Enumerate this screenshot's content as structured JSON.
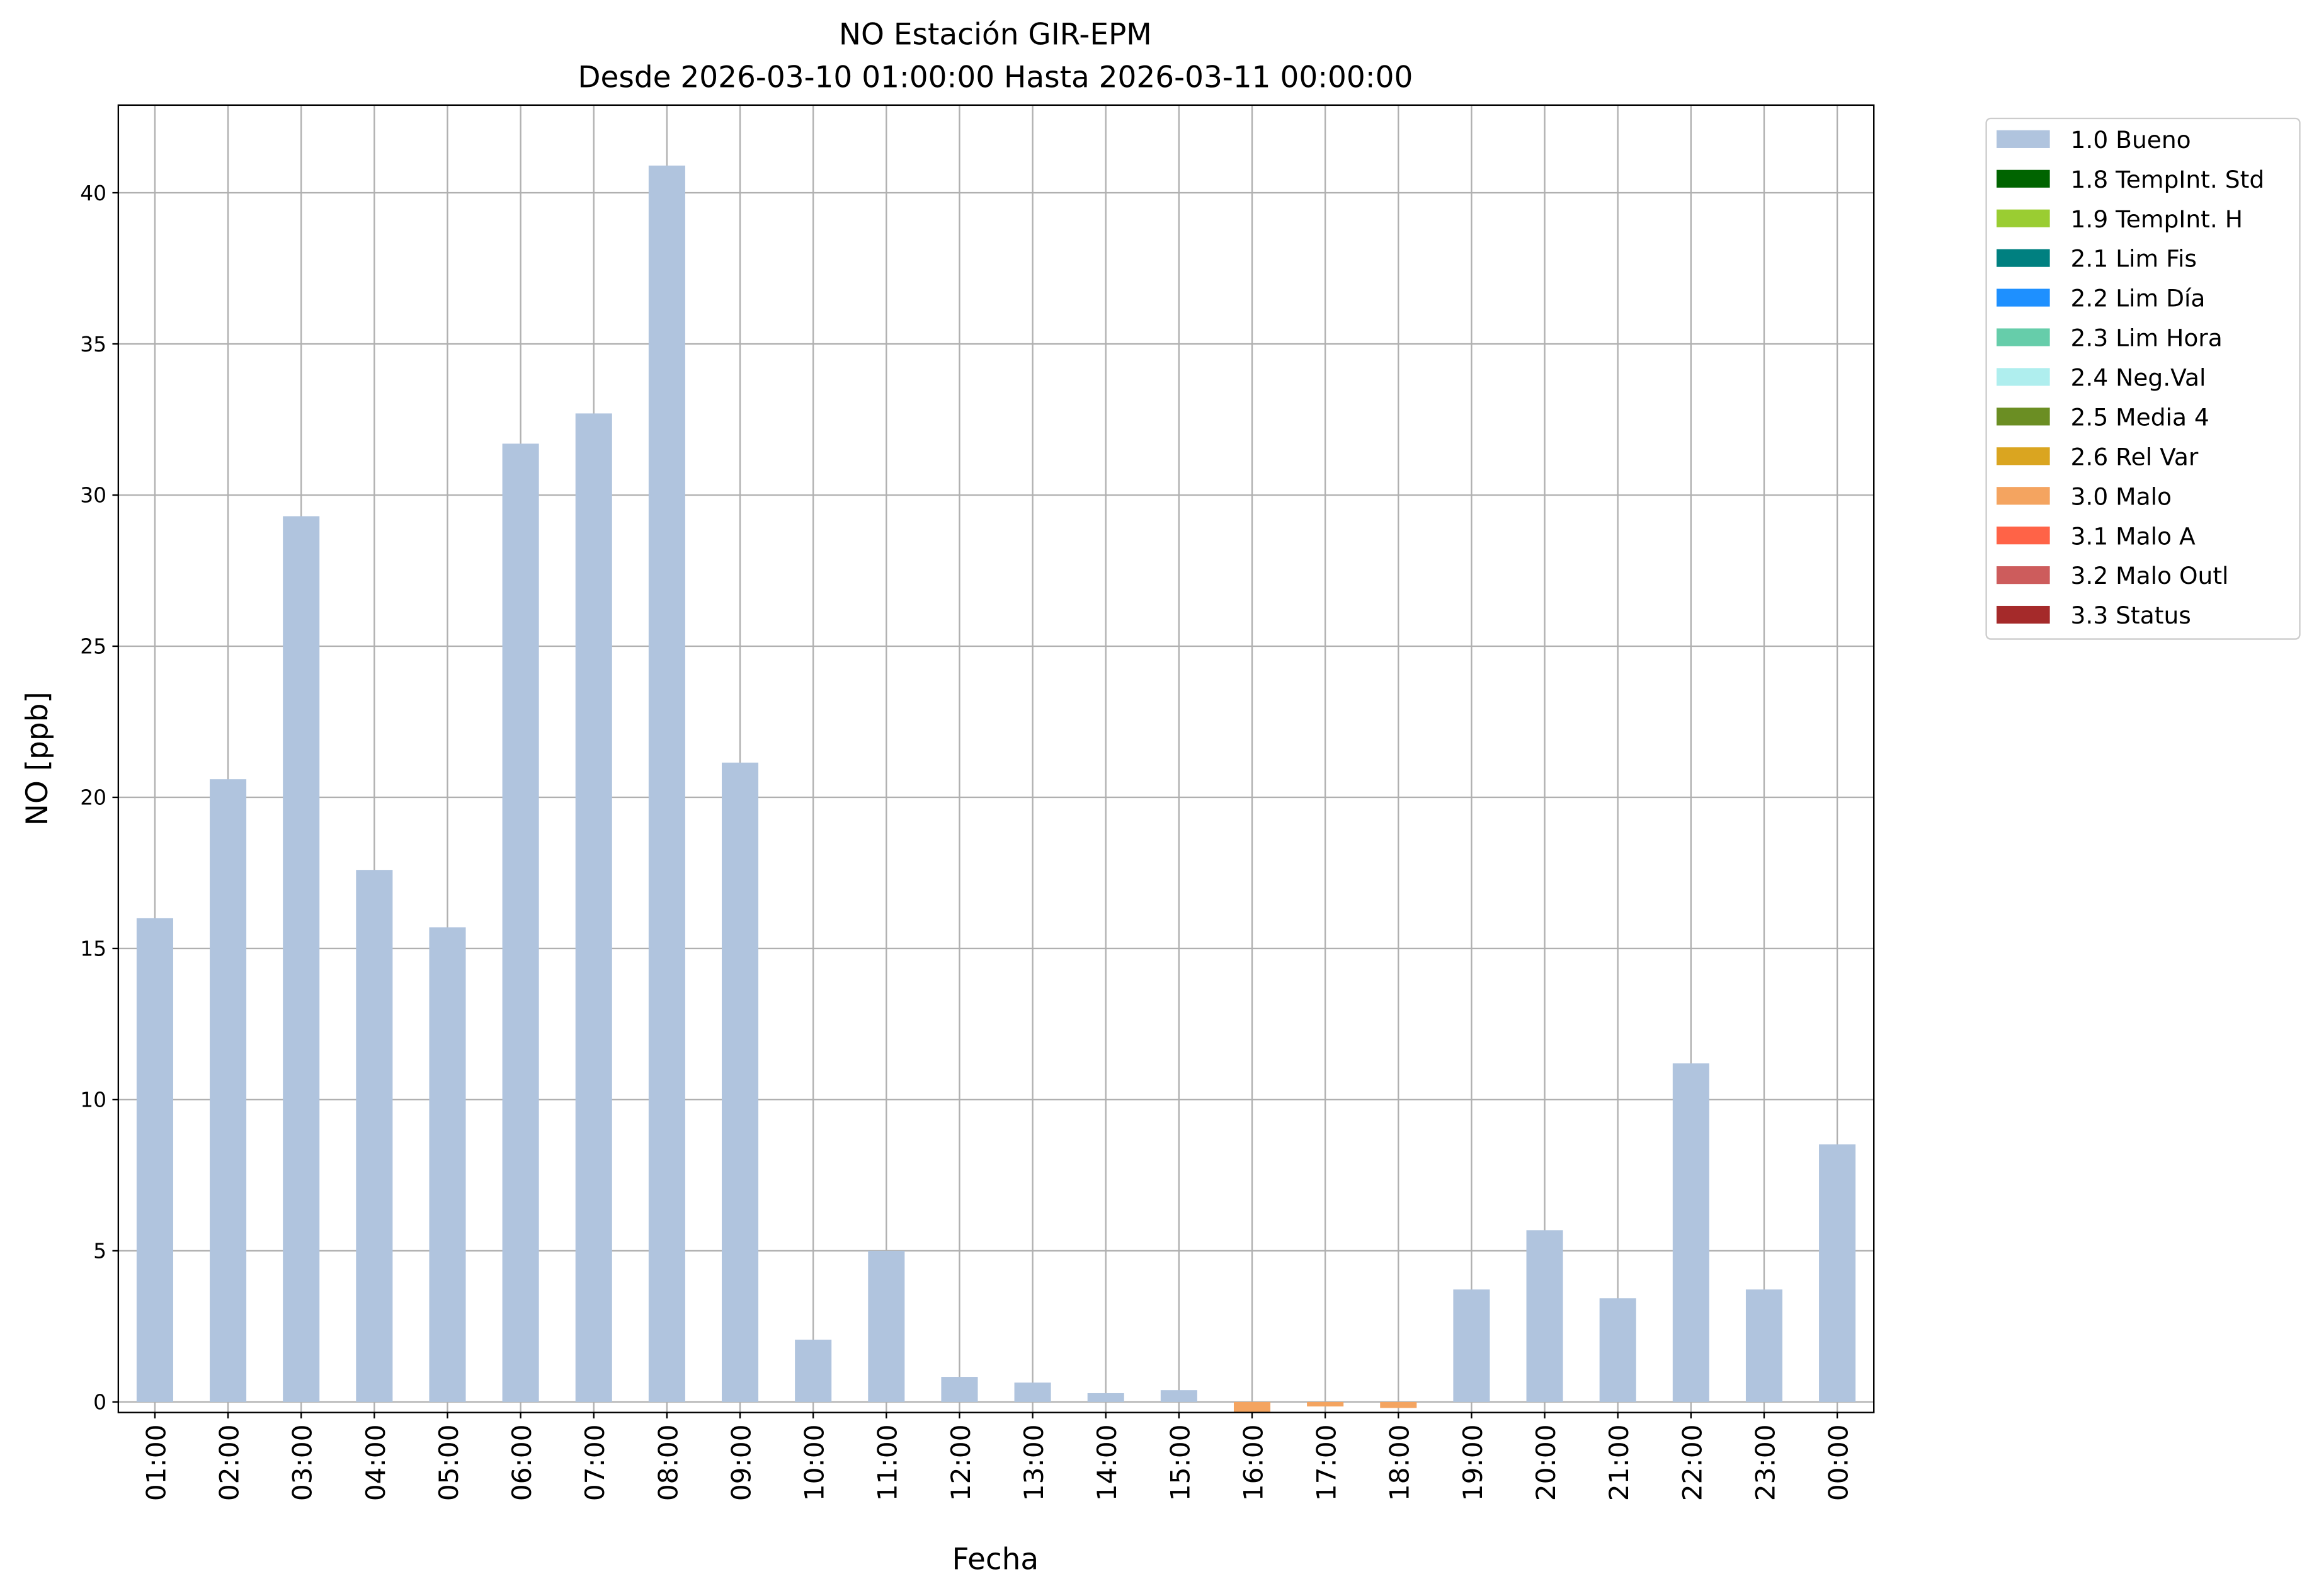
{
  "chart_data": {
    "type": "bar",
    "stacked": true,
    "title": "NO Estación GIR-EPM",
    "subtitle": "Desde 2026-03-10 01:00:00 Hasta 2026-03-11 00:00:00",
    "x_label": "Fecha",
    "y_label": "NO [ppb]",
    "categories": [
      "01:00",
      "02:00",
      "03:00",
      "04:00",
      "05:00",
      "06:00",
      "07:00",
      "08:00",
      "09:00",
      "10:00",
      "11:00",
      "12:00",
      "13:00",
      "14:00",
      "15:00",
      "16:00",
      "17:00",
      "18:00",
      "19:00",
      "20:00",
      "21:00",
      "22:00",
      "23:00",
      "00:00"
    ],
    "series": [
      {
        "name": "1.0 Bueno",
        "color": "#b0c4de",
        "values": [
          16.0,
          20.6,
          29.3,
          17.6,
          15.7,
          31.7,
          32.7,
          40.9,
          21.15,
          2.06,
          5.0,
          0.83,
          0.64,
          0.29,
          0.39,
          null,
          null,
          null,
          3.72,
          5.68,
          3.43,
          11.2,
          3.72,
          8.52
        ]
      },
      {
        "name": "1.8 TempInt. Std",
        "color": "#006400",
        "values": [
          null,
          null,
          null,
          null,
          null,
          null,
          null,
          null,
          null,
          null,
          null,
          null,
          null,
          null,
          null,
          null,
          null,
          null,
          null,
          null,
          null,
          null,
          null,
          null
        ]
      },
      {
        "name": "1.9 TempInt. H",
        "color": "#9acd32",
        "values": [
          null,
          null,
          null,
          null,
          null,
          null,
          null,
          null,
          null,
          null,
          null,
          null,
          null,
          null,
          null,
          null,
          null,
          null,
          null,
          null,
          null,
          null,
          null,
          null
        ]
      },
      {
        "name": "2.1 Lim Fis",
        "color": "#008080",
        "values": [
          null,
          null,
          null,
          null,
          null,
          null,
          null,
          null,
          null,
          null,
          null,
          null,
          null,
          null,
          null,
          null,
          null,
          null,
          null,
          null,
          null,
          null,
          null,
          null
        ]
      },
      {
        "name": "2.2 Lim Día",
        "color": "#1e90ff",
        "values": [
          null,
          null,
          null,
          null,
          null,
          null,
          null,
          null,
          null,
          null,
          null,
          null,
          null,
          null,
          null,
          null,
          null,
          null,
          null,
          null,
          null,
          null,
          null,
          null
        ]
      },
      {
        "name": "2.3 Lim Hora",
        "color": "#66cdaa",
        "values": [
          null,
          null,
          null,
          null,
          null,
          null,
          null,
          null,
          null,
          null,
          null,
          null,
          null,
          null,
          null,
          null,
          null,
          null,
          null,
          null,
          null,
          null,
          null,
          null
        ]
      },
      {
        "name": "2.4 Neg.Val",
        "color": "#afeeee",
        "values": [
          null,
          null,
          null,
          null,
          null,
          null,
          null,
          null,
          null,
          null,
          null,
          null,
          null,
          null,
          null,
          null,
          null,
          null,
          null,
          null,
          null,
          null,
          null,
          null
        ]
      },
      {
        "name": "2.5 Media 4",
        "color": "#6b8e23",
        "values": [
          null,
          null,
          null,
          null,
          null,
          null,
          null,
          null,
          null,
          null,
          null,
          null,
          null,
          null,
          null,
          null,
          null,
          null,
          null,
          null,
          null,
          null,
          null,
          null
        ]
      },
      {
        "name": "2.6 Rel Var",
        "color": "#daa520",
        "values": [
          null,
          null,
          null,
          null,
          null,
          null,
          null,
          null,
          null,
          null,
          null,
          null,
          null,
          null,
          null,
          null,
          null,
          null,
          null,
          null,
          null,
          null,
          null,
          null
        ]
      },
      {
        "name": "3.0 Malo",
        "color": "#f4a460",
        "values": [
          null,
          null,
          null,
          null,
          null,
          null,
          null,
          null,
          null,
          null,
          null,
          null,
          null,
          null,
          null,
          -0.35,
          -0.15,
          -0.2,
          null,
          null,
          null,
          null,
          null,
          null
        ]
      },
      {
        "name": "3.1 Malo A",
        "color": "#ff6347",
        "values": [
          null,
          null,
          null,
          null,
          null,
          null,
          null,
          null,
          null,
          null,
          null,
          null,
          null,
          null,
          null,
          null,
          null,
          null,
          null,
          null,
          null,
          null,
          null,
          null
        ]
      },
      {
        "name": "3.2 Malo Outl",
        "color": "#cd5c5c",
        "values": [
          null,
          null,
          null,
          null,
          null,
          null,
          null,
          null,
          null,
          null,
          null,
          null,
          null,
          null,
          null,
          null,
          null,
          null,
          null,
          null,
          null,
          null,
          null,
          null
        ]
      },
      {
        "name": "3.3 Status",
        "color": "#a52a2a",
        "values": [
          null,
          null,
          null,
          null,
          null,
          null,
          null,
          null,
          null,
          null,
          null,
          null,
          null,
          null,
          null,
          null,
          null,
          null,
          null,
          null,
          null,
          null,
          null,
          null
        ]
      }
    ],
    "ylim": [
      -0.35,
      42.9
    ],
    "yticks": [
      0,
      5,
      10,
      15,
      20,
      25,
      30,
      35,
      40
    ],
    "grid": true,
    "legend": "outside-right"
  }
}
